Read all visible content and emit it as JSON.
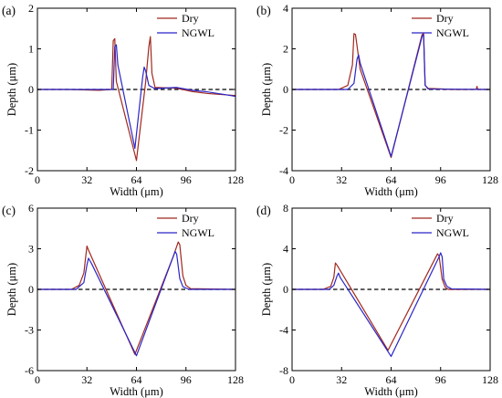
{
  "colors": {
    "dry": "#A0281E",
    "ngwl": "#2B25C8",
    "zero_line": "#000000"
  },
  "chart_data": [
    {
      "type": "line",
      "panel_label": "(a)",
      "xlabel": "Width (μm)",
      "ylabel": "Depth (μm)",
      "xlim": [
        0,
        128
      ],
      "ylim": [
        -2,
        2
      ],
      "xticks": [
        0,
        32,
        64,
        96,
        128
      ],
      "yticks": [
        -2,
        -1,
        0,
        1,
        2
      ],
      "tick_labels_x": [
        "0",
        "32",
        "64",
        "96",
        "128"
      ],
      "tick_labels_y": [
        "-2",
        "-1",
        "0",
        "1",
        "2"
      ],
      "legend": {
        "position": "top-right",
        "entries": [
          "Dry",
          "NGWL"
        ]
      },
      "reference_line": {
        "y": 0,
        "style": "dashed"
      },
      "series": [
        {
          "name": "Dry",
          "color": "#A0281E",
          "points": [
            [
              0,
              0
            ],
            [
              20,
              0
            ],
            [
              40,
              -0.02
            ],
            [
              48,
              0
            ],
            [
              49,
              1.2
            ],
            [
              50,
              1.25
            ],
            [
              51,
              0.2
            ],
            [
              64,
              -1.75
            ],
            [
              70,
              0.2
            ],
            [
              72,
              1.05
            ],
            [
              73,
              1.3
            ],
            [
              74,
              0.4
            ],
            [
              76,
              0.05
            ],
            [
              90,
              0.03
            ],
            [
              100,
              -0.05
            ],
            [
              110,
              -0.1
            ],
            [
              128,
              -0.15
            ]
          ]
        },
        {
          "name": "NGWL",
          "color": "#2B25C8",
          "points": [
            [
              0,
              0
            ],
            [
              20,
              0
            ],
            [
              40,
              0
            ],
            [
              49,
              0
            ],
            [
              50,
              1.05
            ],
            [
              51,
              1.1
            ],
            [
              52,
              0.6
            ],
            [
              63,
              -1.45
            ],
            [
              68,
              0.3
            ],
            [
              69,
              0.55
            ],
            [
              70,
              0.45
            ],
            [
              72,
              0.1
            ],
            [
              76,
              0.02
            ],
            [
              90,
              0.05
            ],
            [
              100,
              -0.02
            ],
            [
              110,
              -0.06
            ],
            [
              120,
              -0.12
            ],
            [
              128,
              -0.17
            ]
          ]
        }
      ]
    },
    {
      "type": "line",
      "panel_label": "(b)",
      "xlabel": "Width (μm)",
      "ylabel": "Depth (μm)",
      "xlim": [
        0,
        128
      ],
      "ylim": [
        -4,
        4
      ],
      "xticks": [
        0,
        32,
        64,
        96,
        128
      ],
      "yticks": [
        -4,
        -2,
        0,
        2,
        4
      ],
      "tick_labels_x": [
        "0",
        "32",
        "64",
        "96",
        "128"
      ],
      "tick_labels_y": [
        "-4",
        "-2",
        "0",
        "2",
        "4"
      ],
      "legend": {
        "position": "top-right",
        "entries": [
          "Dry",
          "NGWL"
        ]
      },
      "reference_line": {
        "y": 0,
        "style": "dashed"
      },
      "series": [
        {
          "name": "Dry",
          "color": "#A0281E",
          "points": [
            [
              0,
              0
            ],
            [
              30,
              0
            ],
            [
              36,
              0.2
            ],
            [
              39,
              1.2
            ],
            [
              40,
              2.75
            ],
            [
              41,
              2.7
            ],
            [
              44,
              1.0
            ],
            [
              64,
              -3.35
            ],
            [
              84,
              2.7
            ],
            [
              85,
              2.75
            ],
            [
              86,
              0.2
            ],
            [
              88,
              0.05
            ],
            [
              105,
              0
            ],
            [
              119,
              0
            ],
            [
              119.5,
              0.15
            ],
            [
              120,
              0
            ],
            [
              128,
              0
            ]
          ]
        },
        {
          "name": "NGWL",
          "color": "#2B25C8",
          "points": [
            [
              0,
              0
            ],
            [
              36,
              0
            ],
            [
              40,
              0.3
            ],
            [
              42,
              1.5
            ],
            [
              43,
              1.7
            ],
            [
              44,
              1.3
            ],
            [
              64,
              -3.3
            ],
            [
              84,
              2.6
            ],
            [
              85,
              2.7
            ],
            [
              86,
              0.2
            ],
            [
              88,
              0.02
            ],
            [
              128,
              0
            ]
          ]
        }
      ]
    },
    {
      "type": "line",
      "panel_label": "(c)",
      "xlabel": "Width (μm)",
      "ylabel": "Depth (μm)",
      "xlim": [
        0,
        128
      ],
      "ylim": [
        -6,
        6
      ],
      "xticks": [
        0,
        32,
        64,
        96,
        128
      ],
      "yticks": [
        -6,
        -3,
        0,
        3,
        6
      ],
      "tick_labels_x": [
        "0",
        "32",
        "64",
        "96",
        "128"
      ],
      "tick_labels_y": [
        "-6",
        "-3",
        "0",
        "3",
        "6"
      ],
      "legend": {
        "position": "top-right",
        "entries": [
          "Dry",
          "NGWL"
        ]
      },
      "reference_line": {
        "y": 0,
        "style": "dashed"
      },
      "series": [
        {
          "name": "Dry",
          "color": "#A0281E",
          "points": [
            [
              0,
              0
            ],
            [
              22,
              0
            ],
            [
              27,
              0.3
            ],
            [
              30,
              1.2
            ],
            [
              32,
              3.2
            ],
            [
              33,
              2.9
            ],
            [
              63,
              -4.8
            ],
            [
              88,
              2.5
            ],
            [
              91,
              3.5
            ],
            [
              92,
              3.3
            ],
            [
              94,
              1.0
            ],
            [
              96,
              0.3
            ],
            [
              99,
              0.05
            ],
            [
              128,
              0
            ]
          ]
        },
        {
          "name": "NGWL",
          "color": "#2B25C8",
          "points": [
            [
              0,
              0
            ],
            [
              25,
              0
            ],
            [
              30,
              0.5
            ],
            [
              32,
              1.8
            ],
            [
              33,
              2.3
            ],
            [
              35,
              1.9
            ],
            [
              64,
              -4.9
            ],
            [
              88,
              2.5
            ],
            [
              89,
              2.8
            ],
            [
              90,
              2.6
            ],
            [
              92,
              0.8
            ],
            [
              94,
              0.2
            ],
            [
              98,
              0
            ],
            [
              128,
              0
            ]
          ]
        }
      ]
    },
    {
      "type": "line",
      "panel_label": "(d)",
      "xlabel": "Width (μm)",
      "ylabel": "Depth (μm)",
      "xlim": [
        0,
        128
      ],
      "ylim": [
        -8,
        8
      ],
      "xticks": [
        0,
        32,
        64,
        96,
        128
      ],
      "yticks": [
        -8,
        -4,
        0,
        4,
        8
      ],
      "tick_labels_x": [
        "0",
        "32",
        "64",
        "96",
        "128"
      ],
      "tick_labels_y": [
        "-8",
        "-4",
        "0",
        "4",
        "8"
      ],
      "legend": {
        "position": "top-right",
        "entries": [
          "Dry",
          "NGWL"
        ]
      },
      "reference_line": {
        "y": 0,
        "style": "dashed"
      },
      "series": [
        {
          "name": "Dry",
          "color": "#A0281E",
          "points": [
            [
              0,
              0
            ],
            [
              20,
              0
            ],
            [
              25,
              0.3
            ],
            [
              27,
              1.2
            ],
            [
              28,
              2.6
            ],
            [
              29,
              2.4
            ],
            [
              62,
              -6.0
            ],
            [
              94,
              3.5
            ],
            [
              95,
              3.3
            ],
            [
              97,
              1.0
            ],
            [
              99,
              0.2
            ],
            [
              101,
              0
            ],
            [
              128,
              0
            ]
          ]
        },
        {
          "name": "NGWL",
          "color": "#2B25C8",
          "points": [
            [
              0,
              0
            ],
            [
              24,
              0
            ],
            [
              27,
              0.4
            ],
            [
              29,
              1.3
            ],
            [
              30,
              1.6
            ],
            [
              31,
              1.2
            ],
            [
              64,
              -6.6
            ],
            [
              95,
              3.2
            ],
            [
              96,
              3.6
            ],
            [
              97,
              3.2
            ],
            [
              98,
              1.0
            ],
            [
              100,
              0.3
            ],
            [
              103,
              0.05
            ],
            [
              128,
              0
            ]
          ]
        }
      ]
    }
  ]
}
